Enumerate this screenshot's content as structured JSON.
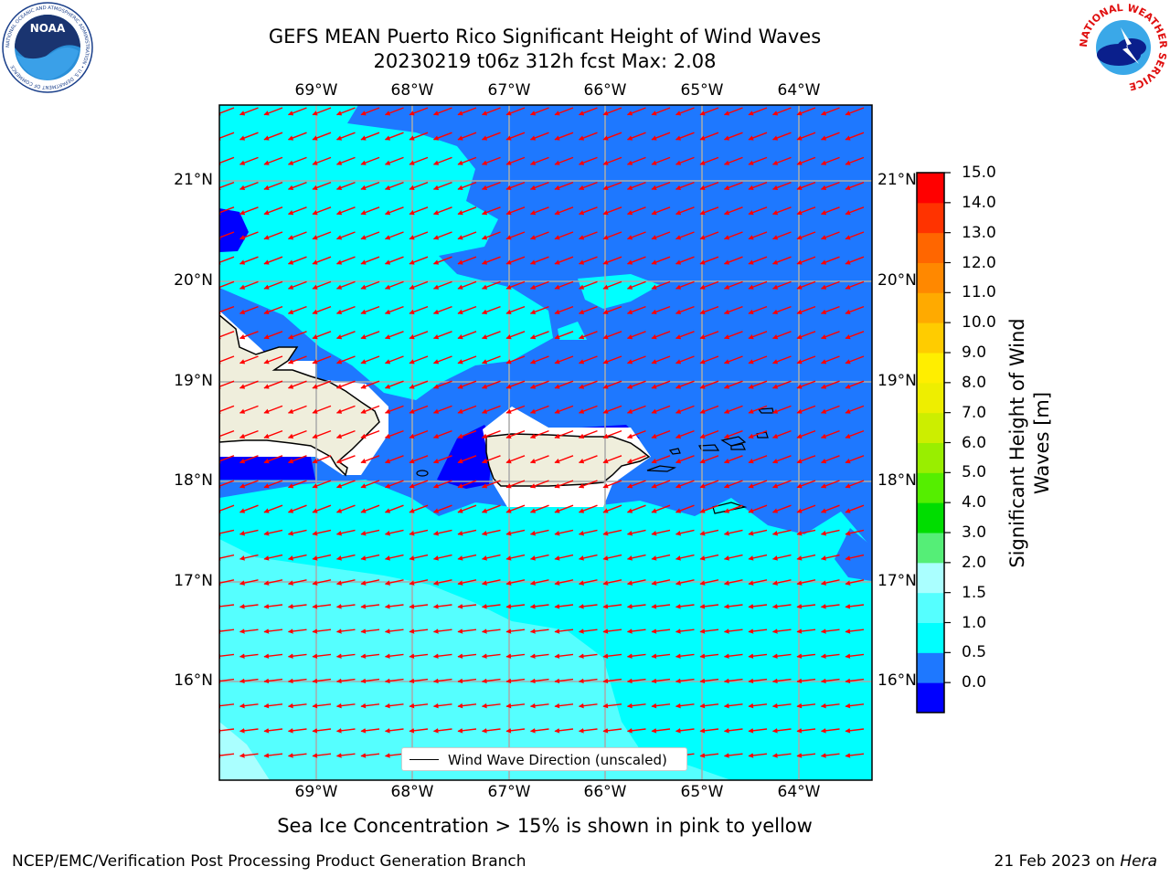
{
  "title_line1": "GEFS MEAN Puerto Rico Significant Height of Wind Waves",
  "title_line2": "20230219 t06z 312h fcst   Max: 2.08",
  "lon_ticks": [
    "69°W",
    "68°W",
    "67°W",
    "66°W",
    "65°W",
    "64°W"
  ],
  "lat_ticks": [
    "21°N",
    "20°N",
    "19°N",
    "18°N",
    "17°N",
    "16°N"
  ],
  "colorbar": {
    "label": "Significant Height of Wind Waves [m]",
    "ticks": [
      "15.0",
      "14.0",
      "13.0",
      "12.0",
      "11.0",
      "10.0",
      "9.0",
      "8.0",
      "7.0",
      "6.0",
      "5.0",
      "4.0",
      "3.0",
      "2.0",
      "1.5",
      "1.0",
      "0.5",
      "0.0"
    ],
    "colors": [
      "#0000ff",
      "#1e78ff",
      "#00ffff",
      "#55ffff",
      "#aaffff",
      "#55ee77",
      "#00dd00",
      "#55ee00",
      "#99ee00",
      "#ccee00",
      "#eeee00",
      "#ffee00",
      "#ffcc00",
      "#ffaa00",
      "#ff8800",
      "#ff6600",
      "#ff3300",
      "#ff0000"
    ]
  },
  "legend": {
    "label": "Wind Wave Direction (unscaled)"
  },
  "sea_ice_note": "Sea Ice Concentration > 15% is shown in pink to yellow",
  "footer": {
    "left": "NCEP/EMC/Verification Post Processing Product Generation Branch",
    "right_prefix": "21 Feb 2023 on ",
    "right_machine": "Hera"
  },
  "logos": {
    "noaa_text": "NOAA",
    "noaa_ring": "NATIONAL OCEANIC AND ATMOSPHERIC ADMINISTRATION • U.S. DEPARTMENT OF COMMERCE",
    "nws_ring": "NATIONAL WEATHER SERVICE"
  },
  "colors": {
    "wind_arrow": "#ff0000",
    "land": "#efeedc",
    "water_low": "#1e78ff",
    "water_mid": "#00ffff",
    "water_high": "#55ffff"
  },
  "map": {
    "lon_range": [
      -70.0,
      -63.25
    ],
    "lat_range": [
      15.0,
      21.75
    ],
    "wind_direction_deg": 250
  }
}
